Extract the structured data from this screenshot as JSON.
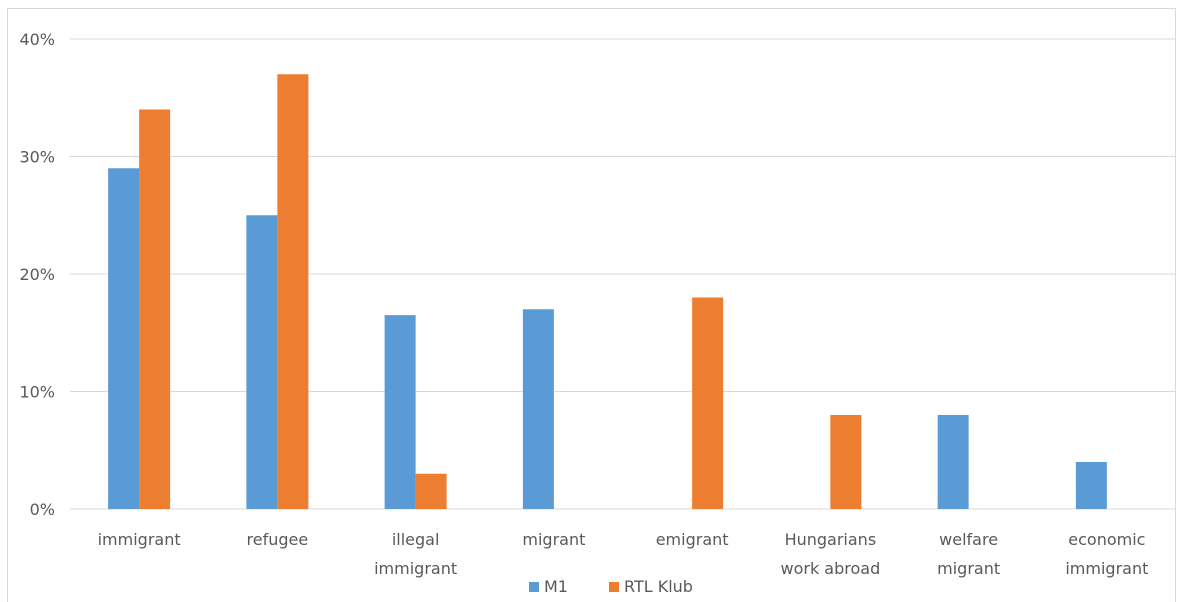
{
  "chart_data": {
    "type": "bar",
    "categories": [
      [
        "immigrant"
      ],
      [
        "refugee"
      ],
      [
        "illegal",
        "immigrant"
      ],
      [
        "migrant"
      ],
      [
        "emigrant"
      ],
      [
        "Hungarians",
        "work abroad"
      ],
      [
        "welfare",
        "migrant"
      ],
      [
        "economic",
        "immigrant"
      ]
    ],
    "series": [
      {
        "name": "M1",
        "color": "#5b9bd5",
        "values": [
          29,
          25,
          16.5,
          17,
          0,
          0,
          8,
          4
        ]
      },
      {
        "name": "RTL Klub",
        "color": "#ed7d31",
        "values": [
          34,
          37,
          3,
          0,
          18,
          8,
          0,
          0
        ]
      }
    ],
    "yticks": [
      "0%",
      "10%",
      "20%",
      "30%",
      "40%"
    ],
    "ylim": [
      0,
      40
    ],
    "grid": true,
    "legend_position": "bottom"
  }
}
